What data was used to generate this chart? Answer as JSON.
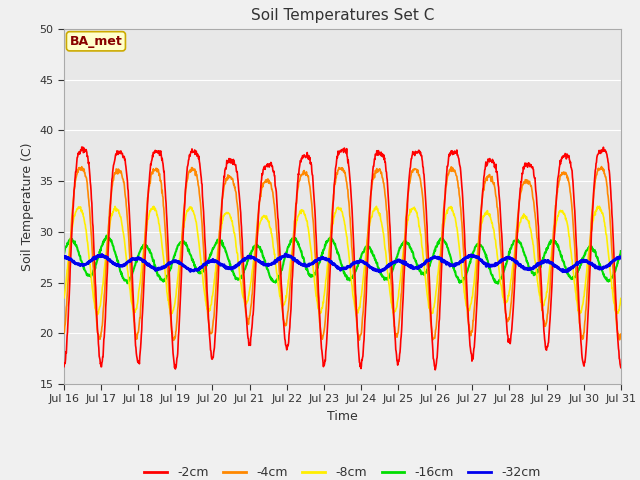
{
  "title": "Soil Temperatures Set C",
  "xlabel": "Time",
  "ylabel": "Soil Temperature (C)",
  "ylim": [
    15,
    50
  ],
  "xlim": [
    0,
    360
  ],
  "fig_bg_color": "#f0f0f0",
  "plot_bg_color": "#e8e8e8",
  "annotation_text": "BA_met",
  "annotation_bg": "#ffffcc",
  "annotation_border": "#ccaa00",
  "series_colors": {
    "-2cm": "#ff0000",
    "-4cm": "#ff8800",
    "-8cm": "#ffee00",
    "-16cm": "#00dd00",
    "-32cm": "#0000ee"
  },
  "series_linewidths": {
    "-2cm": 1.2,
    "-4cm": 1.2,
    "-8cm": 1.2,
    "-16cm": 1.5,
    "-32cm": 2.0
  },
  "tick_labels": [
    "Jul 16",
    "Jul 17",
    "Jul 18",
    "Jul 19",
    "Jul 20",
    "Jul 21",
    "Jul 22",
    "Jul 23",
    "Jul 24",
    "Jul 25",
    "Jul 26",
    "Jul 27",
    "Jul 28",
    "Jul 29",
    "Jul 30",
    "Jul 31"
  ],
  "tick_positions": [
    0,
    24,
    48,
    72,
    96,
    120,
    144,
    168,
    192,
    216,
    240,
    264,
    288,
    312,
    336,
    360
  ]
}
